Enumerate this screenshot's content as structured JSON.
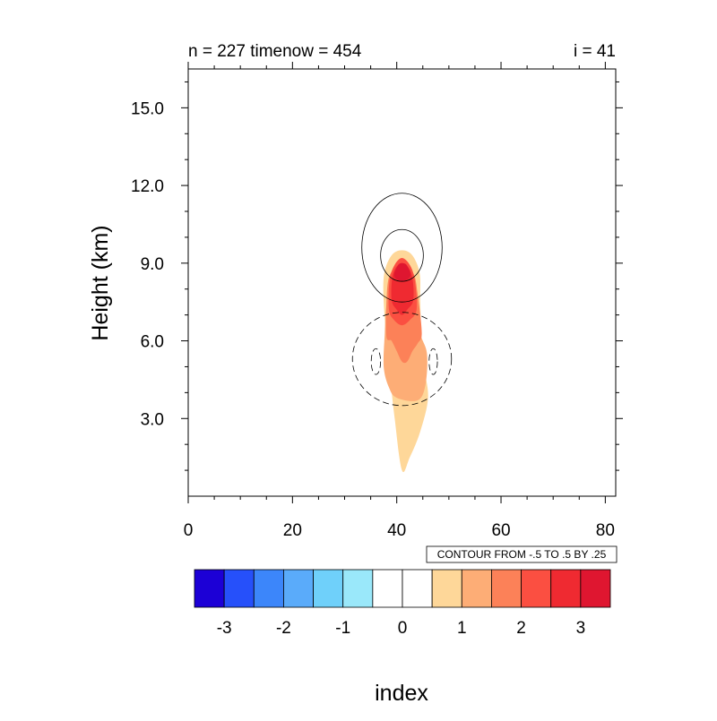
{
  "chart_data": {
    "type": "contour",
    "title_left": "n = 227 timenow = 454",
    "title_right": "i = 41",
    "xlabel": "index",
    "ylabel": "Height (km)",
    "xlim": [
      0,
      82
    ],
    "ylim": [
      0,
      16.5
    ],
    "xticks": [
      {
        "value": 0,
        "label": "0"
      },
      {
        "value": 20,
        "label": "20"
      },
      {
        "value": 40,
        "label": "40"
      },
      {
        "value": 60,
        "label": "60"
      },
      {
        "value": 80,
        "label": "80"
      }
    ],
    "yticks": [
      {
        "value": 3,
        "label": "3.0"
      },
      {
        "value": 6,
        "label": "6.0"
      },
      {
        "value": 9,
        "label": "9.0"
      },
      {
        "value": 12,
        "label": "12.0"
      },
      {
        "value": 15,
        "label": "15.0"
      }
    ],
    "contour_info": "CONTOUR FROM -.5 TO .5 BY .25",
    "filled_field": [
      {
        "level": 0.5,
        "color": "#fed799",
        "points": [
          [
            41,
            1
          ],
          [
            39.6,
            3
          ],
          [
            38.3,
            5.5
          ],
          [
            37.5,
            7.5
          ],
          [
            37.6,
            8.6
          ],
          [
            39,
            9.3
          ],
          [
            41,
            9.5
          ],
          [
            43,
            9.3
          ],
          [
            44.4,
            8.6
          ],
          [
            44.5,
            7.5
          ],
          [
            44.8,
            6
          ],
          [
            45.2,
            5
          ],
          [
            46,
            3.8
          ],
          [
            44.5,
            2.5
          ],
          [
            42.5,
            1.5
          ]
        ]
      },
      {
        "level": 1.0,
        "color": "#fdad76",
        "points": [
          [
            37.5,
            5
          ],
          [
            37.7,
            6.3
          ],
          [
            38,
            7.3
          ],
          [
            39,
            7.8
          ],
          [
            43,
            7.8
          ],
          [
            44.2,
            7.3
          ],
          [
            44.5,
            6.3
          ],
          [
            45.8,
            5.5
          ],
          [
            45.5,
            4.3
          ],
          [
            44,
            3.7
          ],
          [
            40,
            3.8
          ],
          [
            38.5,
            4.2
          ]
        ]
      },
      {
        "level": 1.5,
        "color": "#fc8158",
        "points": [
          [
            38,
            6.2
          ],
          [
            38.1,
            7.8
          ],
          [
            38.8,
            8.6
          ],
          [
            41,
            8.9
          ],
          [
            43.2,
            8.6
          ],
          [
            44,
            7.8
          ],
          [
            44.8,
            6.3
          ],
          [
            44,
            5.9
          ],
          [
            43,
            5.6
          ],
          [
            42,
            5.2
          ],
          [
            41,
            5.2
          ],
          [
            40,
            5.6
          ],
          [
            39,
            6
          ]
        ]
      },
      {
        "level": 2.0,
        "color": "#fb4f41",
        "points": [
          [
            38.5,
            7.2
          ],
          [
            38.6,
            8.3
          ],
          [
            39.5,
            8.9
          ],
          [
            41,
            9.2
          ],
          [
            42.6,
            8.9
          ],
          [
            43.5,
            8.3
          ],
          [
            43.8,
            7.2
          ],
          [
            42.5,
            6.8
          ],
          [
            41,
            6.6
          ],
          [
            39.5,
            6.8
          ]
        ]
      },
      {
        "level": 2.5,
        "color": "#ef2a31",
        "points": [
          [
            39,
            7.6
          ],
          [
            39.3,
            8.6
          ],
          [
            41,
            9.0
          ],
          [
            42.8,
            8.6
          ],
          [
            43.2,
            7.6
          ],
          [
            42,
            7.2
          ],
          [
            41,
            7.0
          ],
          [
            40,
            7.2
          ]
        ]
      },
      {
        "level": 3.0,
        "color": "#df1630",
        "points": [
          [
            39.5,
            8.5
          ],
          [
            40.2,
            8.9
          ],
          [
            41,
            9.0
          ],
          [
            42,
            8.9
          ],
          [
            42.6,
            8.5
          ],
          [
            41,
            8.3
          ]
        ]
      }
    ],
    "contour_lines": [
      {
        "style": "solid",
        "cx": 41,
        "cy": 9.6,
        "rx": 7.7,
        "ry": 2.1
      },
      {
        "style": "solid",
        "cx": 41,
        "cy": 9.3,
        "rx": 4.1,
        "ry": 1.0
      },
      {
        "style": "dashed",
        "cx": 41,
        "cy": 5.3,
        "rx": 9.5,
        "ry": 1.8
      },
      {
        "style": "dashed",
        "cx": 36,
        "cy": 5.2,
        "rx": 0.9,
        "ry": 0.5
      },
      {
        "style": "dashed",
        "cx": 47,
        "cy": 5.2,
        "rx": 0.8,
        "ry": 0.5
      }
    ],
    "colorbar": {
      "colors": [
        "#1c00d6",
        "#2650fa",
        "#3c86fa",
        "#5aabfa",
        "#6fd0fa",
        "#9ae8fa",
        "#ffffff",
        "#ffffff",
        "#fed799",
        "#fdad76",
        "#fc8158",
        "#fb4f41",
        "#ef2a31",
        "#df1630"
      ],
      "labels": [
        "-3",
        "-2",
        "-1",
        "0",
        "1",
        "2",
        "3"
      ]
    }
  }
}
